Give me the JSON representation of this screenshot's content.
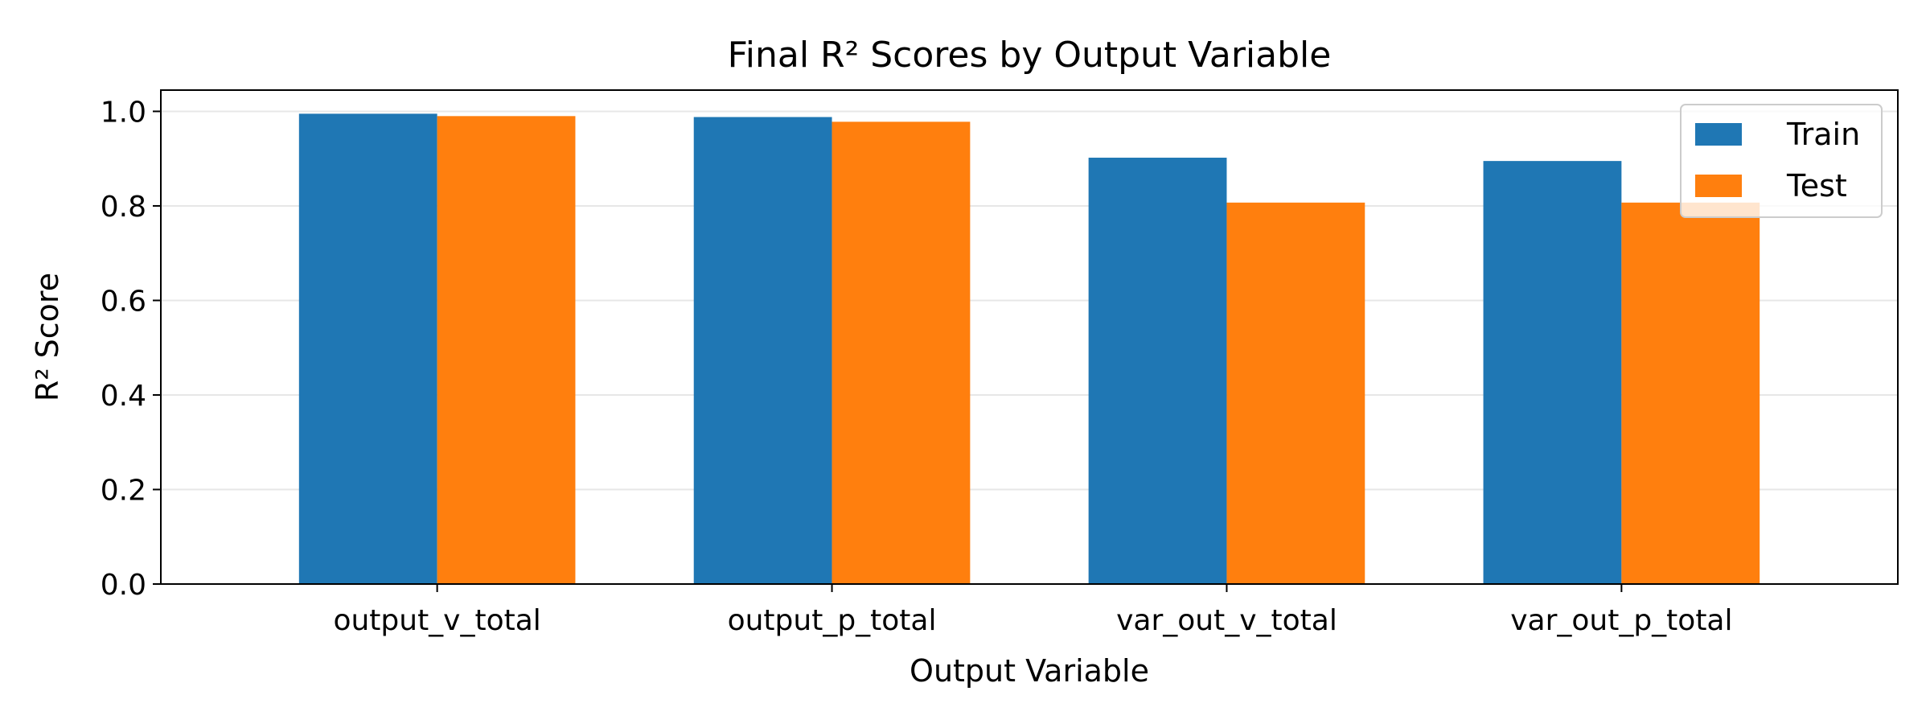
{
  "chart_data": {
    "type": "bar",
    "title": "Final R² Scores by Output Variable",
    "xlabel": "Output Variable",
    "ylabel": "R² Score",
    "categories": [
      "output_v_total",
      "output_p_total",
      "var_out_v_total",
      "var_out_p_total"
    ],
    "series": [
      {
        "name": "Train",
        "color": "#1f77b4",
        "values": [
          0.995,
          0.988,
          0.902,
          0.895
        ]
      },
      {
        "name": "Test",
        "color": "#ff7f0e",
        "values": [
          0.99,
          0.978,
          0.807,
          0.807
        ]
      }
    ],
    "ylim": [
      0,
      1.045
    ],
    "yticks": [
      "0.0",
      "0.2",
      "0.4",
      "0.6",
      "0.8",
      "1.0"
    ],
    "ytick_values": [
      0.0,
      0.2,
      0.4,
      0.6,
      0.8,
      1.0
    ],
    "grid": "y",
    "legend": "upper right"
  }
}
